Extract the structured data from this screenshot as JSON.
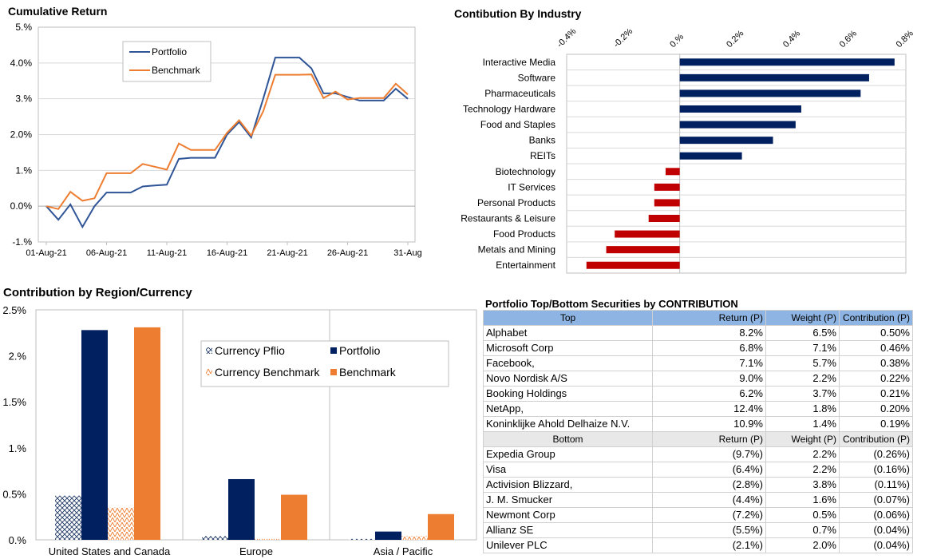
{
  "chart_data": [
    {
      "type": "line",
      "title": "Cumulative Return",
      "x": [
        "01-Aug-21",
        "02-Aug-21",
        "03-Aug-21",
        "04-Aug-21",
        "05-Aug-21",
        "06-Aug-21",
        "07-Aug-21",
        "08-Aug-21",
        "09-Aug-21",
        "10-Aug-21",
        "11-Aug-21",
        "12-Aug-21",
        "13-Aug-21",
        "14-Aug-21",
        "15-Aug-21",
        "16-Aug-21",
        "17-Aug-21",
        "18-Aug-21",
        "19-Aug-21",
        "20-Aug-21",
        "21-Aug-21",
        "22-Aug-21",
        "23-Aug-21",
        "24-Aug-21",
        "25-Aug-21",
        "26-Aug-21",
        "27-Aug-21",
        "28-Aug-21",
        "29-Aug-21",
        "30-Aug-21",
        "31-Aug-21"
      ],
      "x_tick_labels": [
        "01-Aug-21",
        "06-Aug-21",
        "11-Aug-21",
        "16-Aug-21",
        "21-Aug-21",
        "26-Aug-21",
        "31-Aug"
      ],
      "y_tick_labels": [
        "-1.%",
        "0.0%",
        "1.%",
        "2.0%",
        "3.%",
        "4.0%",
        "5.%"
      ],
      "ylim": [
        -1,
        5
      ],
      "grid": "horizontal",
      "legend_position": "top-left",
      "series": [
        {
          "name": "Portfolio",
          "color": "#2f5597",
          "values": [
            0.0,
            -0.38,
            0.05,
            -0.58,
            0.0,
            0.38,
            0.38,
            0.38,
            0.55,
            0.58,
            0.6,
            1.32,
            1.35,
            1.35,
            1.35,
            2.0,
            2.35,
            1.92,
            3.0,
            4.15,
            4.15,
            4.15,
            3.85,
            3.15,
            3.15,
            3.05,
            2.95,
            2.95,
            2.95,
            3.28,
            3.0
          ]
        },
        {
          "name": "Benchmark",
          "color": "#ed7d31",
          "values": [
            0.0,
            -0.08,
            0.4,
            0.15,
            0.22,
            0.92,
            0.92,
            0.92,
            1.18,
            1.1,
            1.02,
            1.75,
            1.57,
            1.57,
            1.57,
            2.05,
            2.4,
            1.97,
            2.65,
            3.67,
            3.67,
            3.67,
            3.68,
            3.02,
            3.2,
            2.98,
            3.02,
            3.02,
            3.02,
            3.42,
            3.12
          ]
        }
      ]
    },
    {
      "type": "bar",
      "orientation": "horizontal",
      "title": "Contibution By Industry",
      "categories": [
        "Interactive Media",
        "Software",
        "Pharmaceuticals",
        "Technology Hardware",
        "Food and Staples",
        "Banks",
        "REITs",
        "Biotechnology",
        "IT Services",
        "Personal Products",
        "Restaurants & Leisure",
        "Food Products",
        "Metals and Mining",
        "Entertainment"
      ],
      "values": [
        0.76,
        0.67,
        0.64,
        0.43,
        0.41,
        0.33,
        0.22,
        -0.05,
        -0.09,
        -0.09,
        -0.11,
        -0.23,
        -0.26,
        -0.33
      ],
      "tick_labels": [
        "-0.4%",
        "-0.2%",
        "0.%",
        "0.2%",
        "0.4%",
        "0.6%",
        "0.8%"
      ],
      "xlim": [
        -0.4,
        0.8
      ],
      "grid": "horizontal",
      "positive_color": "#002060",
      "negative_color": "#c00000"
    },
    {
      "type": "bar",
      "title": "Contribution by Region/Currency",
      "categories": [
        "United States and Canada",
        "Europe",
        "Asia / Pacific"
      ],
      "y_tick_labels": [
        "0.%",
        "0.5%",
        "1.%",
        "1.5%",
        "2.%",
        "2.5%"
      ],
      "ylim": [
        0,
        2.5
      ],
      "legend_position": "top-right",
      "series": [
        {
          "name": "Currency Pflio",
          "color": "#1f3864",
          "pattern": "crosshatch",
          "values": [
            0.48,
            0.04,
            0.01
          ]
        },
        {
          "name": "Portfolio",
          "color": "#002060",
          "values": [
            2.28,
            0.66,
            0.09
          ]
        },
        {
          "name": "Currency Benchmark",
          "color": "#ed7d31",
          "pattern": "zigzag",
          "values": [
            0.35,
            0.01,
            0.04
          ]
        },
        {
          "name": "Benchmark",
          "color": "#ed7d31",
          "values": [
            2.31,
            0.49,
            0.28
          ]
        }
      ]
    },
    {
      "type": "table",
      "title": "Portfolio Top/Bottom Securities by CONTRIBUTION",
      "top_header": [
        "Top",
        "Return (P)",
        "Weight (P)",
        "Contribution (P)"
      ],
      "top_rows": [
        [
          "Alphabet",
          "8.2%",
          "6.5%",
          "0.50%"
        ],
        [
          "Microsoft Corp",
          "6.8%",
          "7.1%",
          "0.46%"
        ],
        [
          "Facebook,",
          "7.1%",
          "5.7%",
          "0.38%"
        ],
        [
          "Novo Nordisk A/S",
          "9.0%",
          "2.2%",
          "0.22%"
        ],
        [
          "Booking Holdings",
          "6.2%",
          "3.7%",
          "0.21%"
        ],
        [
          "NetApp,",
          "12.4%",
          "1.8%",
          "0.20%"
        ],
        [
          "Koninklijke Ahold Delhaize N.V.",
          "10.9%",
          "1.4%",
          "0.19%"
        ]
      ],
      "bottom_header": [
        "Bottom",
        "Return (P)",
        "Weight (P)",
        "Contribution (P)"
      ],
      "bottom_rows": [
        [
          "Expedia Group",
          "(9.7%)",
          "2.2%",
          "(0.26%)"
        ],
        [
          "Visa",
          "(6.4%)",
          "2.2%",
          "(0.16%)"
        ],
        [
          "Activision Blizzard,",
          "(2.8%)",
          "3.8%",
          "(0.11%)"
        ],
        [
          "J. M. Smucker",
          "(4.4%)",
          "1.6%",
          "(0.07%)"
        ],
        [
          "Newmont Corp",
          "(7.2%)",
          "0.5%",
          "(0.06%)"
        ],
        [
          "Allianz SE",
          "(5.5%)",
          "0.7%",
          "(0.04%)"
        ],
        [
          "Unilever PLC",
          "(2.1%)",
          "2.0%",
          "(0.04%)"
        ]
      ]
    }
  ]
}
